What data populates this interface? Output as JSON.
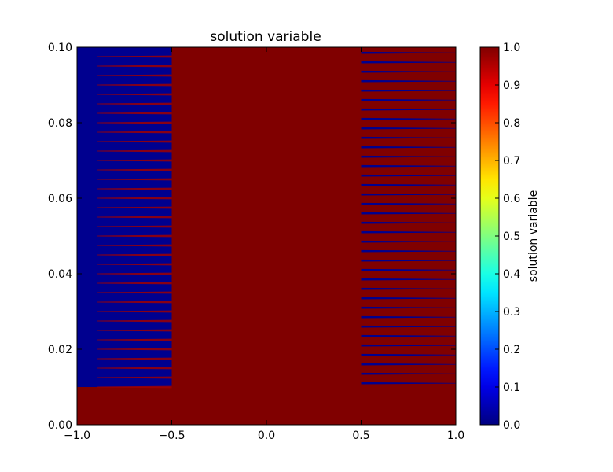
{
  "chart_data": {
    "type": "heatmap",
    "title": "solution variable",
    "xlabel": "",
    "ylabel": "",
    "xlim": [
      -1.0,
      1.0
    ],
    "ylim": [
      0.0,
      0.1
    ],
    "x_tick_labels": [
      "−1.0",
      "−0.5",
      "0.0",
      "0.5",
      "1.0"
    ],
    "x_ticks": [
      -1.0,
      -0.5,
      0.0,
      0.5,
      1.0
    ],
    "y_tick_labels": [
      "0.00",
      "0.02",
      "0.04",
      "0.06",
      "0.08",
      "0.10"
    ],
    "y_ticks": [
      0.0,
      0.02,
      0.04,
      0.06,
      0.08,
      0.1
    ],
    "colormap": "jet",
    "colorbar": {
      "label": "solution variable",
      "range": [
        0.0,
        1.0
      ],
      "tick_labels": [
        "0.0",
        "0.1",
        "0.2",
        "0.3",
        "0.4",
        "0.5",
        "0.6",
        "0.7",
        "0.8",
        "0.9",
        "1.0"
      ],
      "ticks": [
        0.0,
        0.1,
        0.2,
        0.3,
        0.4,
        0.5,
        0.6,
        0.7,
        0.8,
        0.9,
        1.0
      ]
    },
    "background_value": 1.0,
    "regions": [
      {
        "description": "blue comb, left",
        "x_range": [
          -1.0,
          -0.5
        ],
        "y_range": [
          0.01,
          0.1
        ],
        "value": 0.0,
        "stripe_value": 1.0,
        "stripe_count": 36
      },
      {
        "description": "thin blue lines, right",
        "x_range": [
          0.5,
          1.0
        ],
        "y_range": [
          0.01,
          0.1
        ],
        "value": 0.0,
        "background": 1.0,
        "line_count": 36
      }
    ],
    "colors": {
      "dark_red": "#800000",
      "dark_blue": "#00008f",
      "stripe_red": "#a00000"
    }
  }
}
